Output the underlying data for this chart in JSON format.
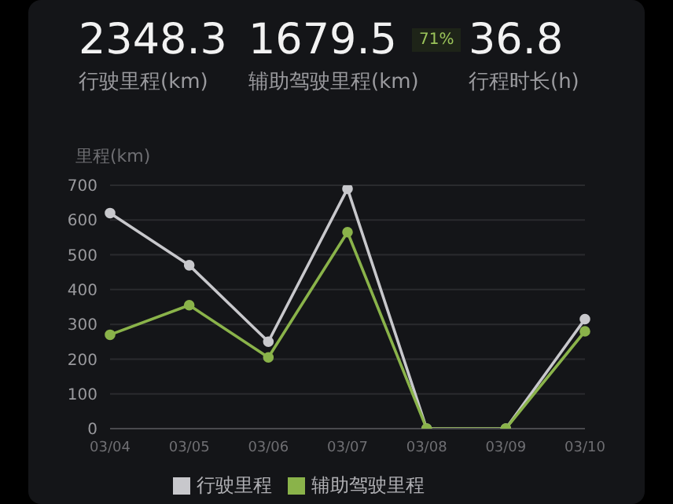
{
  "chart_data": {
    "type": "line",
    "ylabel": "里程(km)",
    "categories": [
      "03/04",
      "03/05",
      "03/06",
      "03/07",
      "03/08",
      "03/09",
      "03/10"
    ],
    "series": [
      {
        "name": "行驶里程",
        "color": "#c8c8cc",
        "values": [
          620,
          470,
          250,
          690,
          0,
          0,
          315
        ]
      },
      {
        "name": "辅助驾驶里程",
        "color": "#8ab34a",
        "values": [
          270,
          355,
          205,
          565,
          0,
          0,
          280
        ]
      }
    ],
    "ylim": [
      0,
      700
    ],
    "yticks": [
      0,
      100,
      200,
      300,
      400,
      500,
      600,
      700
    ],
    "grid": "y",
    "legend": "bottom",
    "marker": "circle",
    "line_style": "solid",
    "annotations": [
      "2348.3",
      "行驶里程(km)",
      "1679.5",
      "71%",
      "辅助驾驶里程(km)",
      "36.8",
      "行程时长(h)"
    ]
  }
}
